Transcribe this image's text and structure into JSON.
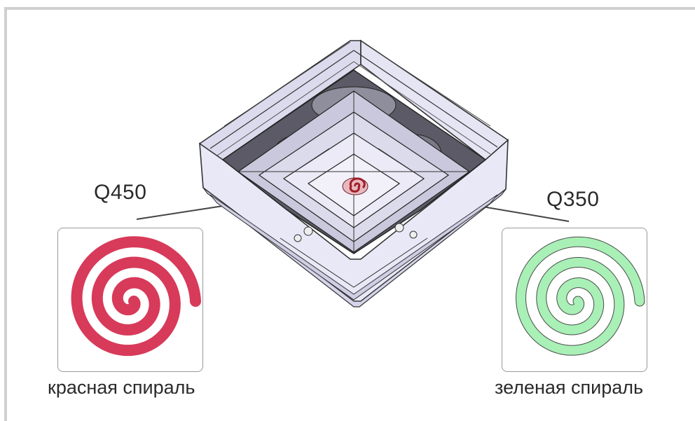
{
  "labels": {
    "left_model": "Q450",
    "right_model": "Q350"
  },
  "captions": {
    "left": "красная спираль",
    "right": "зеленая спираль"
  },
  "colors": {
    "red_spiral": "#d83a5a",
    "green_spiral": "#a8f0b6",
    "diffuser_fill": "#e4e3f4",
    "diffuser_stroke": "#333333",
    "center_spiral": "#a01e28"
  }
}
